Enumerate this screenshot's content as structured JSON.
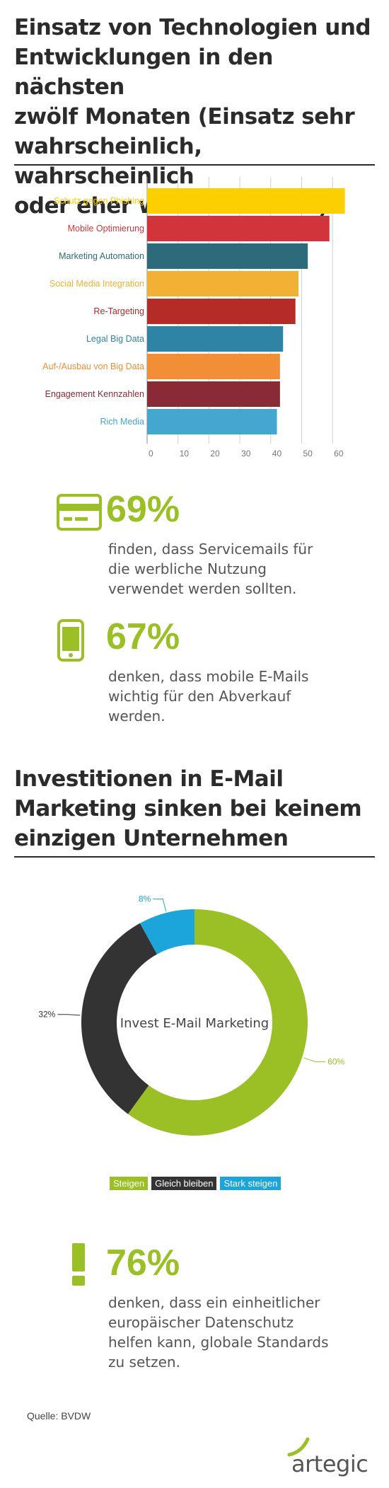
{
  "section1": {
    "title_lines": [
      "Einsatz von Technologien und",
      "Entwicklungen in den nächsten",
      "zwölf Monaten (Einsatz sehr",
      "wahrscheinlich, wahrscheinlich",
      "oder eher wahrscheinlich)"
    ]
  },
  "stat1": {
    "value": "69%",
    "lines": [
      "finden, dass Servicemails für",
      "die werbliche Nutzung",
      "verwendet werden sollten."
    ],
    "icon": "credit-card-icon"
  },
  "stat2": {
    "value": "67%",
    "lines": [
      "denken, dass mobile E-Mails",
      "wichtig für den Abverkauf",
      "werden."
    ],
    "icon": "smartphone-icon"
  },
  "section2": {
    "title_lines": [
      "Investitionen in E-Mail",
      "Marketing sinken bei keinem",
      "einzigen Unternehmen"
    ]
  },
  "stat3": {
    "value": "76%",
    "lines": [
      "denken, dass ein einheitlicher",
      "europäischer Datenschutz",
      "helfen kann, globale Standards",
      "zu setzen."
    ],
    "icon": "exclamation-icon"
  },
  "legend": [
    {
      "label": "Steigen",
      "color": "#9bc025"
    },
    {
      "label": "Gleich bleiben",
      "color": "#333333"
    },
    {
      "label": "Stark steigen",
      "color": "#1ba5da"
    }
  ],
  "source": "Quelle: BVDW",
  "brand": "artegic",
  "accent_color": "#9bc025",
  "chart_data": [
    {
      "type": "bar",
      "orientation": "horizontal",
      "categories": [
        "Schutz gegen Phishing",
        "Mobile Optimierung",
        "Marketing Automation",
        "Social Media Integration",
        "Re-Targeting",
        "Legal Big Data",
        "Auf-/Ausbau von Big Data",
        "Engagement Kennzahlen",
        "Rich Media"
      ],
      "values": [
        64,
        59,
        52,
        49,
        48,
        44,
        43,
        43,
        42
      ],
      "colors": [
        "#fcd000",
        "#d1343b",
        "#2d6b7a",
        "#f2b134",
        "#b52b27",
        "#2f84a6",
        "#f28f36",
        "#8a2a36",
        "#43a7cf"
      ],
      "xticks": [
        0,
        10,
        20,
        30,
        40,
        50,
        60
      ],
      "xlim": [
        0,
        65
      ],
      "grid": true
    },
    {
      "type": "pie",
      "donut": true,
      "center_label": "Invest E-Mail Marketing",
      "slices": [
        {
          "label": "Steigen",
          "value": 60,
          "display": "60%",
          "color": "#9bc025"
        },
        {
          "label": "Gleich bleiben",
          "value": 32,
          "display": "32%",
          "color": "#333333"
        },
        {
          "label": "Stark steigen",
          "value": 8,
          "display": "8%",
          "color": "#1ba5da"
        }
      ]
    }
  ]
}
